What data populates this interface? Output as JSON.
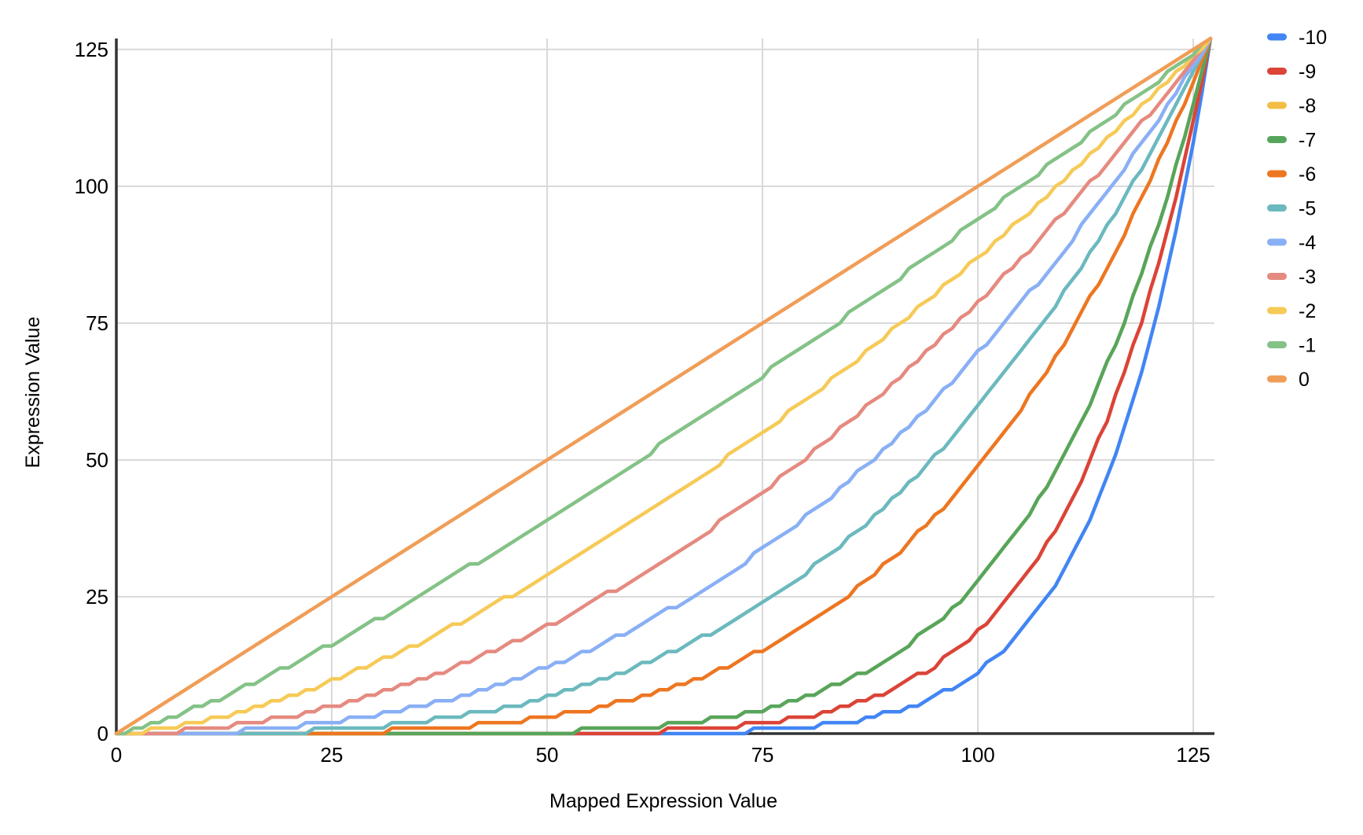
{
  "chart_data": {
    "type": "line",
    "title": "",
    "xlabel": "Mapped Expression Value",
    "ylabel": "Expression Value",
    "x_range": [
      0,
      127
    ],
    "y_range": [
      0,
      127
    ],
    "x_ticks": [
      0,
      25,
      50,
      75,
      100,
      125
    ],
    "y_ticks": [
      0,
      25,
      50,
      75,
      100,
      125
    ],
    "grid": true,
    "legend_position": "right",
    "point_formula": "y = round(127 * (x/127)^exponent) for integer x = 0..127",
    "sample_x": [
      0,
      10,
      20,
      30,
      40,
      50,
      60,
      70,
      80,
      90,
      100,
      110,
      120,
      127
    ],
    "series": [
      {
        "name": "-10",
        "color": "#4285F4",
        "exponent": 10.08,
        "sample_y": [
          0,
          0,
          0,
          0,
          0,
          0,
          0,
          0,
          1,
          4,
          11,
          30,
          72,
          127
        ]
      },
      {
        "name": "-9",
        "color": "#DB4437",
        "exponent": 8.0,
        "sample_y": [
          0,
          0,
          0,
          0,
          0,
          0,
          0,
          1,
          3,
          8,
          19,
          40,
          81,
          127
        ]
      },
      {
        "name": "-8",
        "color": "#F2BE45",
        "exponent": 6.35,
        "sample_y": [
          0,
          0,
          0,
          0,
          0,
          0,
          1,
          3,
          7,
          14,
          28,
          51,
          89,
          127
        ],
        "overlaps": "-7"
      },
      {
        "name": "-7",
        "color": "#57A55C",
        "exponent": 6.35,
        "sample_y": [
          0,
          0,
          0,
          0,
          0,
          0,
          1,
          3,
          7,
          14,
          28,
          51,
          89,
          127
        ]
      },
      {
        "name": "-6",
        "color": "#ED7621",
        "exponent": 4.0,
        "sample_y": [
          0,
          0,
          0,
          0,
          1,
          3,
          6,
          12,
          20,
          32,
          49,
          71,
          101,
          127
        ]
      },
      {
        "name": "-5",
        "color": "#6BB9BE",
        "exponent": 3.16,
        "sample_y": [
          0,
          0,
          0,
          1,
          3,
          7,
          12,
          19,
          29,
          43,
          60,
          81,
          106,
          127
        ]
      },
      {
        "name": "-4",
        "color": "#89AFF5",
        "exponent": 2.52,
        "sample_y": [
          0,
          0,
          1,
          3,
          7,
          12,
          19,
          28,
          40,
          53,
          70,
          88,
          110,
          127
        ]
      },
      {
        "name": "-3",
        "color": "#E58A80",
        "exponent": 2.0,
        "sample_y": [
          0,
          1,
          3,
          7,
          13,
          20,
          28,
          39,
          50,
          64,
          79,
          95,
          113,
          127
        ]
      },
      {
        "name": "-2",
        "color": "#F6CA57",
        "exponent": 1.585,
        "sample_y": [
          0,
          2,
          7,
          13,
          20,
          29,
          39,
          49,
          61,
          74,
          87,
          101,
          116,
          127
        ]
      },
      {
        "name": "-1",
        "color": "#84C287",
        "exponent": 1.26,
        "sample_y": [
          0,
          5,
          12,
          21,
          30,
          39,
          49,
          60,
          71,
          82,
          94,
          106,
          118,
          127
        ]
      },
      {
        "name": "0",
        "color": "#F09D57",
        "exponent": 1.0,
        "sample_y": [
          0,
          10,
          20,
          30,
          40,
          50,
          60,
          70,
          80,
          90,
          100,
          110,
          120,
          127
        ]
      }
    ]
  },
  "colors": {
    "grid": "#D9D9D9",
    "axis": "#333333",
    "text": "#000000",
    "background": "#FFFFFF"
  }
}
